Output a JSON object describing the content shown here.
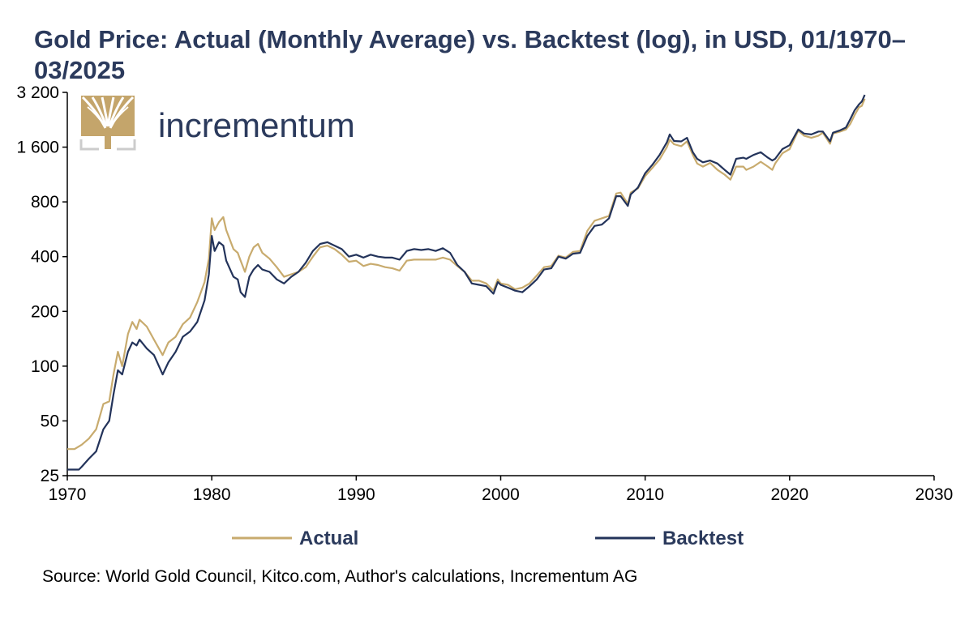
{
  "title": "Gold Price: Actual (Monthly Average) vs. Backtest (log), in USD, 01/1970–03/2025",
  "source": "Source: World Gold Council, Kitco.com, Author's calculations, Incrementum AG",
  "logo": {
    "text": "incrementum",
    "icon": "tree-icon"
  },
  "colors": {
    "actual": "#c8ab6e",
    "backtest": "#23335a",
    "text": "#2b3a5c",
    "logo_gold": "#c4a56b"
  },
  "chart_data": {
    "type": "line",
    "yscale": "log",
    "xlim": [
      1970,
      2030
    ],
    "ylim": [
      25,
      3200
    ],
    "xticks": [
      1970,
      1980,
      1990,
      2000,
      2010,
      2020,
      2030
    ],
    "xtick_labels": [
      "1970",
      "1980",
      "1990",
      "2000",
      "2010",
      "2020",
      "2030"
    ],
    "yticks": [
      25,
      50,
      100,
      200,
      400,
      800,
      1600,
      3200
    ],
    "ytick_labels": [
      "25",
      "50",
      "100",
      "200",
      "400",
      "800",
      "1 600",
      "3 200"
    ],
    "legend_position": "bottom",
    "series": [
      {
        "name": "Actual",
        "color": "#c8ab6e",
        "points": [
          [
            1970.0,
            35
          ],
          [
            1970.5,
            35
          ],
          [
            1971.0,
            37
          ],
          [
            1971.5,
            40
          ],
          [
            1972.0,
            45
          ],
          [
            1972.5,
            62
          ],
          [
            1972.9,
            64
          ],
          [
            1973.2,
            90
          ],
          [
            1973.5,
            120
          ],
          [
            1973.8,
            100
          ],
          [
            1974.2,
            150
          ],
          [
            1974.5,
            175
          ],
          [
            1974.8,
            160
          ],
          [
            1975.0,
            180
          ],
          [
            1975.5,
            165
          ],
          [
            1976.0,
            140
          ],
          [
            1976.6,
            115
          ],
          [
            1977.0,
            135
          ],
          [
            1977.5,
            145
          ],
          [
            1978.0,
            170
          ],
          [
            1978.5,
            185
          ],
          [
            1979.0,
            225
          ],
          [
            1979.5,
            290
          ],
          [
            1979.8,
            390
          ],
          [
            1980.0,
            650
          ],
          [
            1980.2,
            560
          ],
          [
            1980.5,
            620
          ],
          [
            1980.8,
            660
          ],
          [
            1981.0,
            560
          ],
          [
            1981.5,
            440
          ],
          [
            1981.8,
            420
          ],
          [
            1982.0,
            380
          ],
          [
            1982.3,
            330
          ],
          [
            1982.6,
            400
          ],
          [
            1982.9,
            450
          ],
          [
            1983.2,
            470
          ],
          [
            1983.5,
            420
          ],
          [
            1984.0,
            390
          ],
          [
            1984.5,
            350
          ],
          [
            1985.0,
            310
          ],
          [
            1985.5,
            320
          ],
          [
            1986.0,
            330
          ],
          [
            1986.5,
            350
          ],
          [
            1987.0,
            400
          ],
          [
            1987.5,
            450
          ],
          [
            1988.0,
            460
          ],
          [
            1988.5,
            440
          ],
          [
            1989.0,
            410
          ],
          [
            1989.5,
            375
          ],
          [
            1990.0,
            380
          ],
          [
            1990.5,
            355
          ],
          [
            1991.0,
            365
          ],
          [
            1991.5,
            360
          ],
          [
            1992.0,
            350
          ],
          [
            1992.5,
            345
          ],
          [
            1993.0,
            335
          ],
          [
            1993.5,
            380
          ],
          [
            1994.0,
            385
          ],
          [
            1994.5,
            385
          ],
          [
            1995.0,
            385
          ],
          [
            1995.5,
            385
          ],
          [
            1996.0,
            395
          ],
          [
            1996.5,
            385
          ],
          [
            1997.0,
            355
          ],
          [
            1997.5,
            330
          ],
          [
            1998.0,
            295
          ],
          [
            1998.5,
            295
          ],
          [
            1999.0,
            285
          ],
          [
            1999.5,
            260
          ],
          [
            1999.8,
            300
          ],
          [
            2000.0,
            285
          ],
          [
            2000.5,
            280
          ],
          [
            2001.0,
            265
          ],
          [
            2001.5,
            270
          ],
          [
            2002.0,
            285
          ],
          [
            2002.5,
            315
          ],
          [
            2003.0,
            350
          ],
          [
            2003.5,
            355
          ],
          [
            2004.0,
            405
          ],
          [
            2004.5,
            395
          ],
          [
            2005.0,
            425
          ],
          [
            2005.5,
            430
          ],
          [
            2006.0,
            555
          ],
          [
            2006.5,
            630
          ],
          [
            2007.0,
            650
          ],
          [
            2007.5,
            670
          ],
          [
            2008.0,
            890
          ],
          [
            2008.3,
            900
          ],
          [
            2008.8,
            780
          ],
          [
            2009.0,
            900
          ],
          [
            2009.5,
            950
          ],
          [
            2010.0,
            1110
          ],
          [
            2010.5,
            1230
          ],
          [
            2011.0,
            1370
          ],
          [
            2011.5,
            1600
          ],
          [
            2011.7,
            1760
          ],
          [
            2012.0,
            1660
          ],
          [
            2012.5,
            1620
          ],
          [
            2012.9,
            1720
          ],
          [
            2013.3,
            1450
          ],
          [
            2013.6,
            1300
          ],
          [
            2014.0,
            1250
          ],
          [
            2014.5,
            1310
          ],
          [
            2015.0,
            1200
          ],
          [
            2015.5,
            1130
          ],
          [
            2015.9,
            1060
          ],
          [
            2016.3,
            1250
          ],
          [
            2016.8,
            1250
          ],
          [
            2017.0,
            1200
          ],
          [
            2017.5,
            1250
          ],
          [
            2018.0,
            1330
          ],
          [
            2018.5,
            1250
          ],
          [
            2018.8,
            1200
          ],
          [
            2019.0,
            1300
          ],
          [
            2019.5,
            1480
          ],
          [
            2020.0,
            1560
          ],
          [
            2020.6,
            1970
          ],
          [
            2021.0,
            1850
          ],
          [
            2021.5,
            1800
          ],
          [
            2022.0,
            1850
          ],
          [
            2022.3,
            1920
          ],
          [
            2022.8,
            1670
          ],
          [
            2023.0,
            1900
          ],
          [
            2023.5,
            1950
          ],
          [
            2023.9,
            2000
          ],
          [
            2024.2,
            2150
          ],
          [
            2024.5,
            2400
          ],
          [
            2024.8,
            2650
          ],
          [
            2025.0,
            2700
          ],
          [
            2025.2,
            2950
          ]
        ]
      },
      {
        "name": "Backtest",
        "color": "#23335a",
        "points": [
          [
            1970.0,
            27
          ],
          [
            1970.8,
            27
          ],
          [
            1971.0,
            28
          ],
          [
            1971.5,
            31
          ],
          [
            1972.0,
            34
          ],
          [
            1972.5,
            45
          ],
          [
            1972.9,
            50
          ],
          [
            1973.2,
            70
          ],
          [
            1973.5,
            95
          ],
          [
            1973.8,
            90
          ],
          [
            1974.2,
            120
          ],
          [
            1974.5,
            135
          ],
          [
            1974.8,
            130
          ],
          [
            1975.0,
            140
          ],
          [
            1975.5,
            125
          ],
          [
            1976.0,
            115
          ],
          [
            1976.6,
            90
          ],
          [
            1977.0,
            105
          ],
          [
            1977.5,
            120
          ],
          [
            1978.0,
            145
          ],
          [
            1978.5,
            155
          ],
          [
            1979.0,
            175
          ],
          [
            1979.5,
            230
          ],
          [
            1979.8,
            320
          ],
          [
            1980.0,
            520
          ],
          [
            1980.2,
            430
          ],
          [
            1980.5,
            480
          ],
          [
            1980.8,
            460
          ],
          [
            1981.0,
            380
          ],
          [
            1981.5,
            310
          ],
          [
            1981.8,
            300
          ],
          [
            1982.0,
            255
          ],
          [
            1982.3,
            240
          ],
          [
            1982.6,
            310
          ],
          [
            1982.9,
            340
          ],
          [
            1983.2,
            360
          ],
          [
            1983.5,
            340
          ],
          [
            1984.0,
            330
          ],
          [
            1984.5,
            300
          ],
          [
            1985.0,
            285
          ],
          [
            1985.5,
            310
          ],
          [
            1986.0,
            330
          ],
          [
            1986.5,
            370
          ],
          [
            1987.0,
            430
          ],
          [
            1987.5,
            470
          ],
          [
            1988.0,
            480
          ],
          [
            1988.5,
            460
          ],
          [
            1989.0,
            440
          ],
          [
            1989.5,
            400
          ],
          [
            1990.0,
            410
          ],
          [
            1990.5,
            395
          ],
          [
            1991.0,
            410
          ],
          [
            1991.5,
            400
          ],
          [
            1992.0,
            395
          ],
          [
            1992.5,
            395
          ],
          [
            1993.0,
            385
          ],
          [
            1993.5,
            430
          ],
          [
            1994.0,
            440
          ],
          [
            1994.5,
            435
          ],
          [
            1995.0,
            440
          ],
          [
            1995.5,
            430
          ],
          [
            1996.0,
            445
          ],
          [
            1996.5,
            420
          ],
          [
            1997.0,
            360
          ],
          [
            1997.5,
            330
          ],
          [
            1998.0,
            285
          ],
          [
            1998.5,
            280
          ],
          [
            1999.0,
            275
          ],
          [
            1999.5,
            250
          ],
          [
            1999.8,
            290
          ],
          [
            2000.0,
            280
          ],
          [
            2000.5,
            270
          ],
          [
            2001.0,
            260
          ],
          [
            2001.5,
            255
          ],
          [
            2002.0,
            275
          ],
          [
            2002.5,
            300
          ],
          [
            2003.0,
            340
          ],
          [
            2003.5,
            345
          ],
          [
            2004.0,
            400
          ],
          [
            2004.5,
            390
          ],
          [
            2005.0,
            415
          ],
          [
            2005.5,
            420
          ],
          [
            2006.0,
            520
          ],
          [
            2006.5,
            590
          ],
          [
            2007.0,
            600
          ],
          [
            2007.5,
            650
          ],
          [
            2008.0,
            860
          ],
          [
            2008.3,
            860
          ],
          [
            2008.8,
            760
          ],
          [
            2009.0,
            880
          ],
          [
            2009.5,
            960
          ],
          [
            2010.0,
            1150
          ],
          [
            2010.5,
            1280
          ],
          [
            2011.0,
            1450
          ],
          [
            2011.5,
            1700
          ],
          [
            2011.7,
            1880
          ],
          [
            2012.0,
            1730
          ],
          [
            2012.5,
            1720
          ],
          [
            2012.9,
            1800
          ],
          [
            2013.3,
            1500
          ],
          [
            2013.6,
            1380
          ],
          [
            2014.0,
            1320
          ],
          [
            2014.5,
            1350
          ],
          [
            2015.0,
            1300
          ],
          [
            2015.5,
            1200
          ],
          [
            2015.9,
            1130
          ],
          [
            2016.3,
            1380
          ],
          [
            2016.8,
            1400
          ],
          [
            2017.0,
            1380
          ],
          [
            2017.5,
            1450
          ],
          [
            2018.0,
            1500
          ],
          [
            2018.5,
            1400
          ],
          [
            2018.8,
            1350
          ],
          [
            2019.0,
            1380
          ],
          [
            2019.5,
            1560
          ],
          [
            2020.0,
            1640
          ],
          [
            2020.6,
            2000
          ],
          [
            2021.0,
            1900
          ],
          [
            2021.5,
            1880
          ],
          [
            2022.0,
            1950
          ],
          [
            2022.3,
            1950
          ],
          [
            2022.8,
            1720
          ],
          [
            2023.0,
            1920
          ],
          [
            2023.5,
            1980
          ],
          [
            2023.9,
            2050
          ],
          [
            2024.2,
            2280
          ],
          [
            2024.5,
            2550
          ],
          [
            2024.8,
            2750
          ],
          [
            2025.0,
            2850
          ],
          [
            2025.2,
            3100
          ]
        ]
      }
    ]
  }
}
